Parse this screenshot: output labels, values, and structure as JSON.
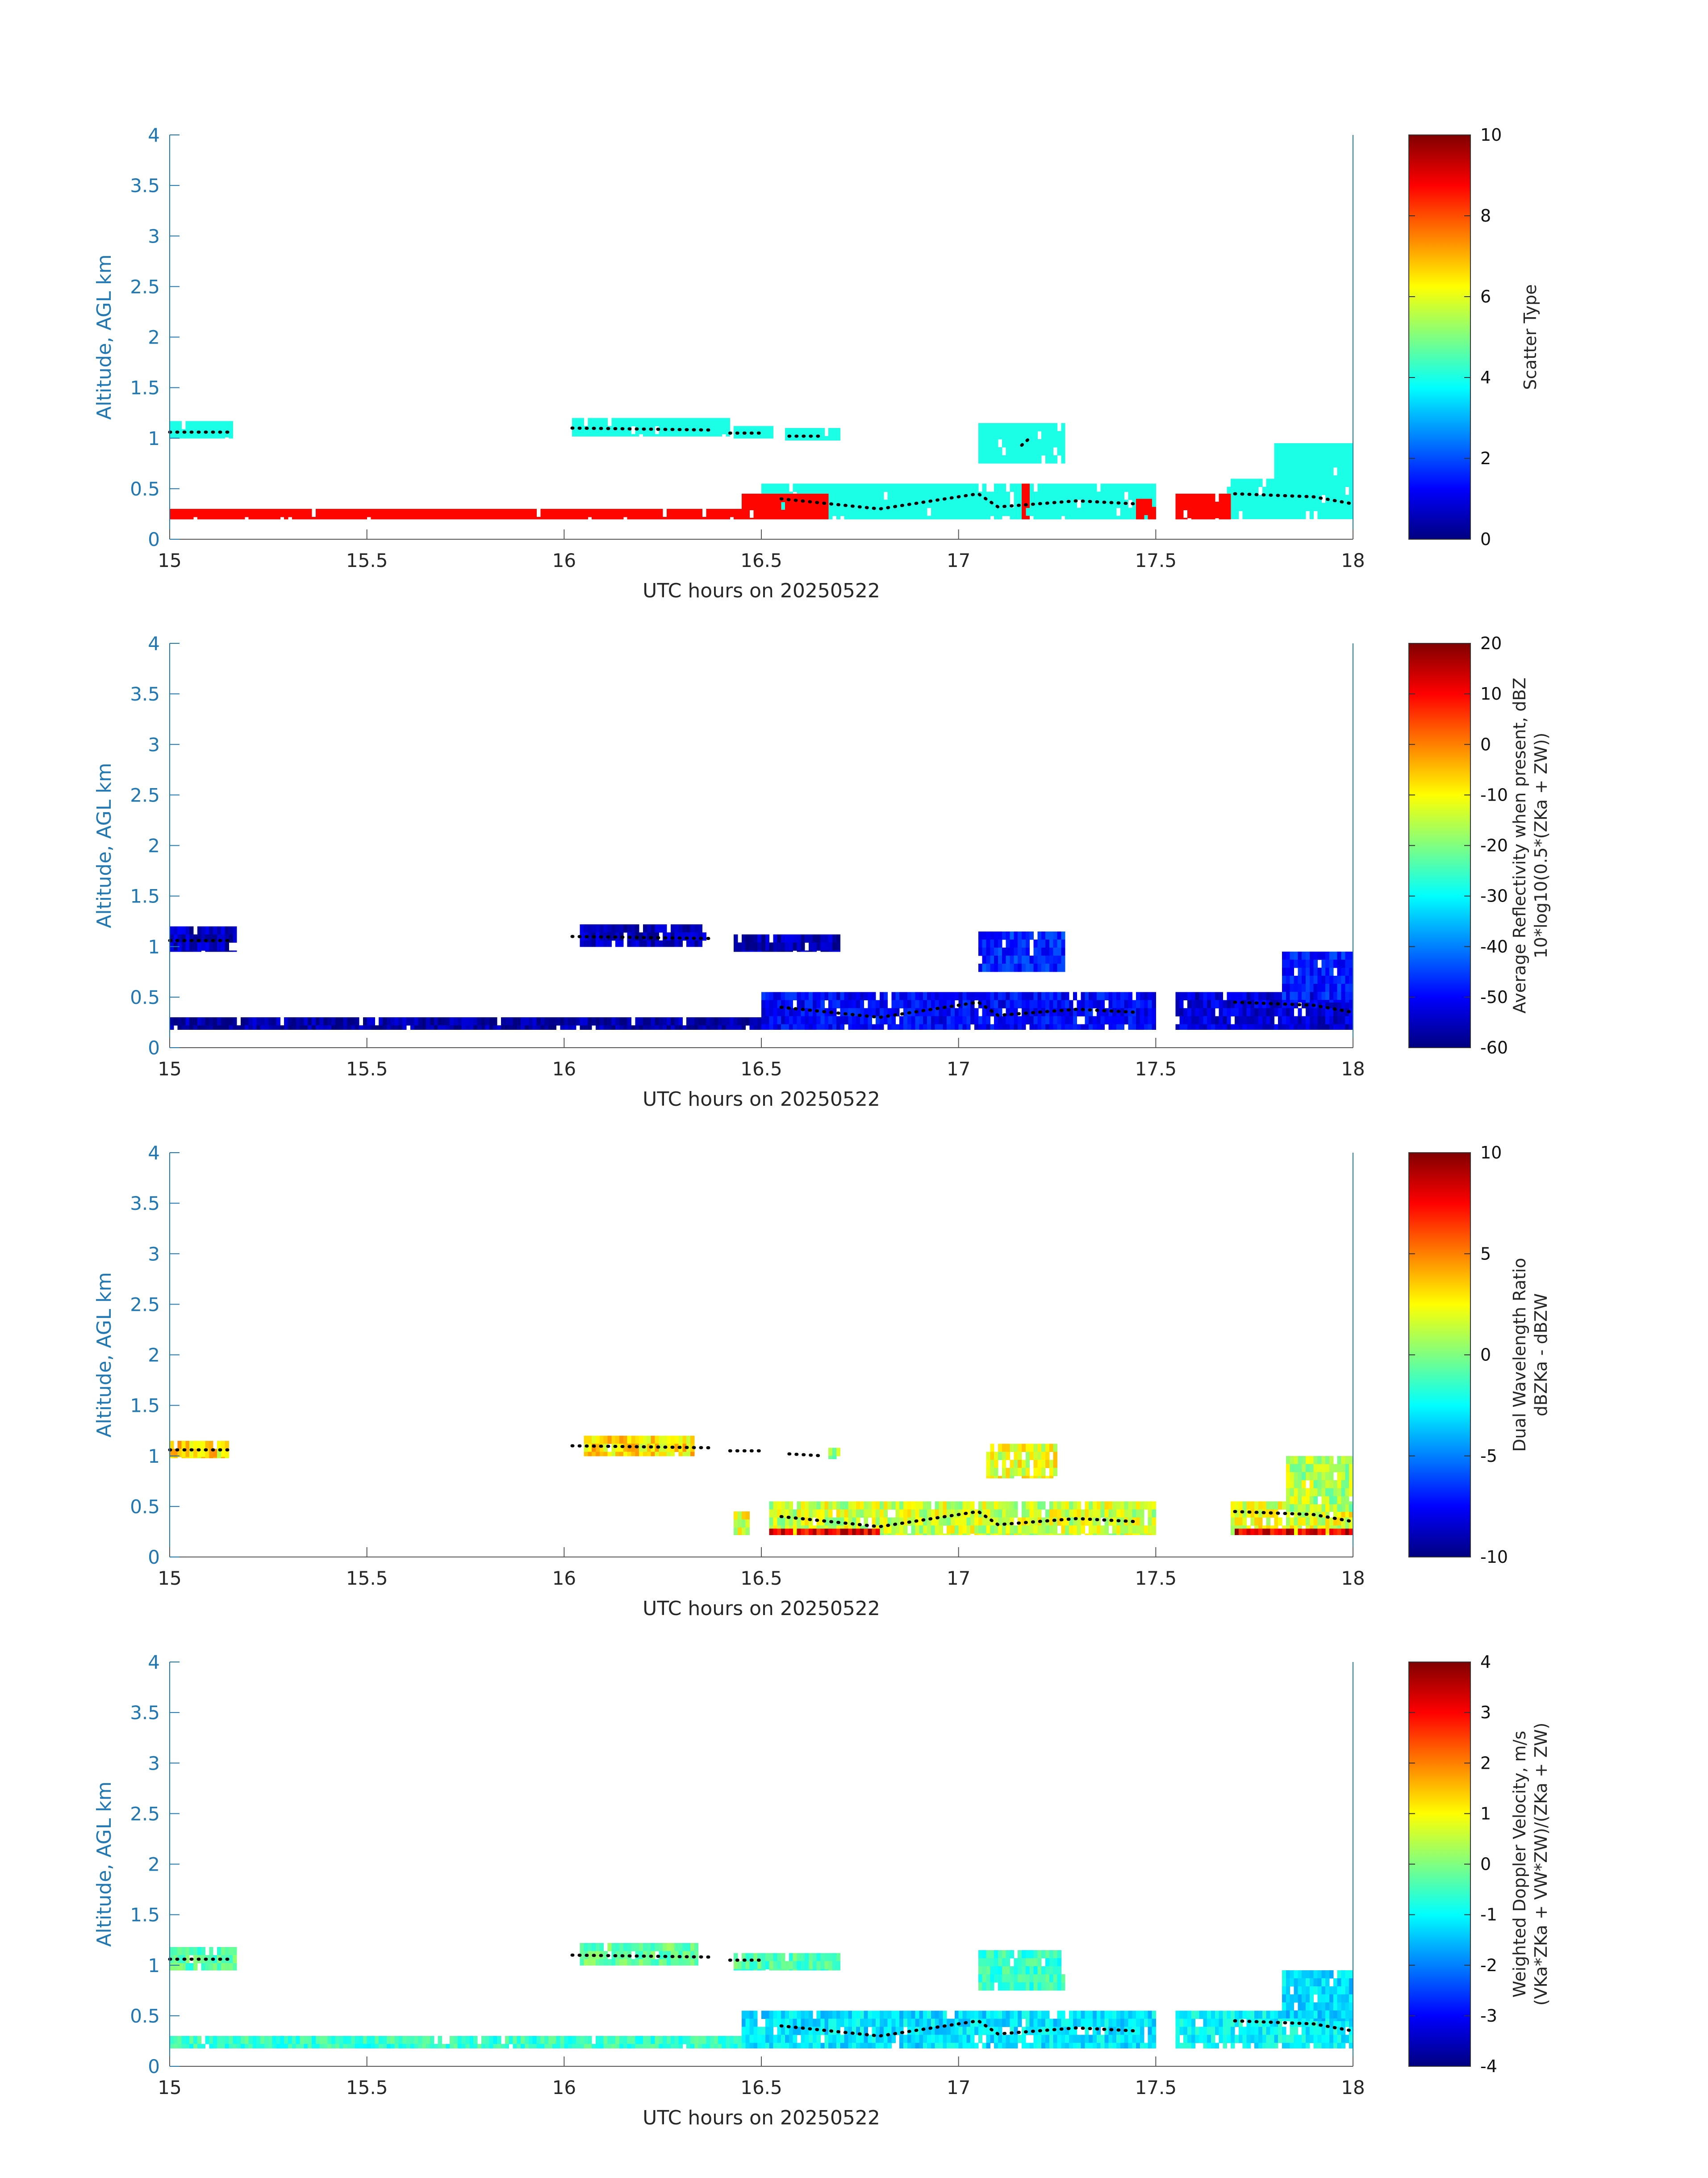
{
  "figure": {
    "xlabel": "UTC hours on 20250522",
    "ylabel": "Altitude, AGL km"
  },
  "chart_data": [
    {
      "type": "heatmap",
      "name": "Scatter Type",
      "xlabel": "UTC hours on 20250522",
      "ylabel": "Altitude, AGL km",
      "xlim": [
        15,
        18
      ],
      "ylim": [
        0,
        4
      ],
      "xticks": [
        "15",
        "15.5",
        "16",
        "16.5",
        "17",
        "17.5",
        "18"
      ],
      "yticks": [
        "0",
        "0.5",
        "1",
        "1.5",
        "2",
        "2.5",
        "3",
        "3.5",
        "4"
      ],
      "colorbar": {
        "label_lines": [
          "Scatter Type"
        ],
        "clim": [
          0,
          10
        ],
        "ticks": [
          "0",
          "2",
          "4",
          "6",
          "8",
          "10"
        ]
      },
      "regions": [
        {
          "x": [
            15.0,
            15.16
          ],
          "y": [
            1.0,
            1.17
          ],
          "value": 4
        },
        {
          "x": [
            16.02,
            16.42
          ],
          "y": [
            1.02,
            1.2
          ],
          "value": 4
        },
        {
          "x": [
            16.43,
            16.53
          ],
          "y": [
            1.0,
            1.12
          ],
          "value": 4
        },
        {
          "x": [
            16.56,
            16.7
          ],
          "y": [
            0.98,
            1.1
          ],
          "value": 4
        },
        {
          "x": [
            17.05,
            17.27
          ],
          "y": [
            0.75,
            1.15
          ],
          "value": 4
        },
        {
          "x": [
            16.5,
            17.5
          ],
          "y": [
            0.2,
            0.55
          ],
          "value": 4
        },
        {
          "x": [
            17.68,
            18.0
          ],
          "y": [
            0.2,
            0.6
          ],
          "value": 4
        },
        {
          "x": [
            17.8,
            18.0
          ],
          "y": [
            0.55,
            0.95
          ],
          "value": 4
        },
        {
          "x": [
            15.0,
            16.45
          ],
          "y": [
            0.2,
            0.3
          ],
          "value": 8.7
        },
        {
          "x": [
            16.45,
            16.67
          ],
          "y": [
            0.2,
            0.45
          ],
          "value": 8.7
        },
        {
          "x": [
            17.16,
            17.18
          ],
          "y": [
            0.2,
            0.55
          ],
          "value": 8.7
        },
        {
          "x": [
            17.45,
            17.5
          ],
          "y": [
            0.2,
            0.4
          ],
          "value": 8.7
        },
        {
          "x": [
            17.55,
            17.69
          ],
          "y": [
            0.2,
            0.45
          ],
          "value": 8.7
        }
      ],
      "dots": [
        {
          "x": [
            15.0,
            15.16
          ],
          "y": [
            1.06,
            1.06
          ]
        },
        {
          "x": [
            16.02,
            16.38
          ],
          "y": [
            1.1,
            1.08
          ]
        },
        {
          "x": [
            16.42,
            16.5
          ],
          "y": [
            1.05,
            1.05
          ]
        },
        {
          "x": [
            16.57,
            16.66
          ],
          "y": [
            1.02,
            1.02
          ]
        },
        {
          "x": [
            16.55,
            16.8,
            17.05,
            17.1,
            17.3,
            17.45
          ],
          "y": [
            0.4,
            0.3,
            0.45,
            0.32,
            0.38,
            0.35
          ]
        },
        {
          "x": [
            17.7,
            17.9,
            18.0
          ],
          "y": [
            0.45,
            0.42,
            0.35
          ]
        },
        {
          "x": [
            17.16,
            17.18
          ],
          "y": [
            0.93,
            1.0
          ]
        }
      ]
    },
    {
      "type": "heatmap",
      "name": "Average Reflectivity when present",
      "xlabel": "UTC hours on 20250522",
      "ylabel": "Altitude, AGL km",
      "xlim": [
        15,
        18
      ],
      "ylim": [
        0,
        4
      ],
      "xticks": [
        "15",
        "15.5",
        "16",
        "16.5",
        "17",
        "17.5",
        "18"
      ],
      "yticks": [
        "0",
        "0.5",
        "1",
        "1.5",
        "2",
        "2.5",
        "3",
        "3.5",
        "4"
      ],
      "colorbar": {
        "label_lines": [
          "Average Reflectivity when present, dBZ",
          "10*log10(0.5*(Z_Ka + Z_W))"
        ],
        "clim": [
          -60,
          20
        ],
        "ticks": [
          "-60",
          "-50",
          "-40",
          "-30",
          "-20",
          "-10",
          "0",
          "10",
          "20"
        ]
      },
      "regions": [
        {
          "x": [
            15.0,
            15.17
          ],
          "y": [
            0.95,
            1.2
          ],
          "value": -55
        },
        {
          "x": [
            16.04,
            16.36
          ],
          "y": [
            1.0,
            1.22
          ],
          "value": -55
        },
        {
          "x": [
            16.43,
            16.7
          ],
          "y": [
            0.95,
            1.12
          ],
          "value": -56
        },
        {
          "x": [
            17.05,
            17.27
          ],
          "y": [
            0.75,
            1.15
          ],
          "value": -47
        },
        {
          "x": [
            15.0,
            16.5
          ],
          "y": [
            0.18,
            0.3
          ],
          "value": -57
        },
        {
          "x": [
            16.5,
            17.5
          ],
          "y": [
            0.18,
            0.55
          ],
          "value": -50
        },
        {
          "x": [
            17.55,
            18.0
          ],
          "y": [
            0.18,
            0.55
          ],
          "value": -53
        },
        {
          "x": [
            17.82,
            18.0
          ],
          "y": [
            0.45,
            0.95
          ],
          "value": -48
        }
      ],
      "dots": [
        {
          "x": [
            15.0,
            15.16
          ],
          "y": [
            1.06,
            1.06
          ]
        },
        {
          "x": [
            16.02,
            16.38
          ],
          "y": [
            1.1,
            1.08
          ]
        },
        {
          "x": [
            16.55,
            16.8,
            17.05,
            17.1,
            17.3,
            17.45
          ],
          "y": [
            0.4,
            0.3,
            0.45,
            0.32,
            0.38,
            0.35
          ]
        },
        {
          "x": [
            17.7,
            17.9,
            18.0
          ],
          "y": [
            0.45,
            0.42,
            0.35
          ]
        }
      ]
    },
    {
      "type": "heatmap",
      "name": "Dual Wavelength Ratio",
      "xlabel": "UTC hours on 20250522",
      "ylabel": "Altitude, AGL km",
      "xlim": [
        15,
        18
      ],
      "ylim": [
        0,
        4
      ],
      "xticks": [
        "15",
        "15.5",
        "16",
        "16.5",
        "17",
        "17.5",
        "18"
      ],
      "yticks": [
        "0",
        "0.5",
        "1",
        "1.5",
        "2",
        "2.5",
        "3",
        "3.5",
        "4"
      ],
      "colorbar": {
        "label_lines": [
          "Dual Wavelength Ratio",
          "dBZ_Ka - dBZ_W"
        ],
        "clim": [
          -10,
          10
        ],
        "ticks": [
          "-10",
          "-5",
          "0",
          "5",
          "10"
        ]
      },
      "regions": [
        {
          "x": [
            15.0,
            15.15
          ],
          "y": [
            0.98,
            1.15
          ],
          "value": 3
        },
        {
          "x": [
            16.05,
            16.33
          ],
          "y": [
            1.0,
            1.2
          ],
          "value": 3
        },
        {
          "x": [
            16.67,
            16.7
          ],
          "y": [
            0.97,
            1.08
          ],
          "value": 0
        },
        {
          "x": [
            17.07,
            17.25
          ],
          "y": [
            0.78,
            1.12
          ],
          "value": 2
        },
        {
          "x": [
            16.43,
            16.47
          ],
          "y": [
            0.22,
            0.45
          ],
          "value": 2
        },
        {
          "x": [
            16.52,
            17.5
          ],
          "y": [
            0.22,
            0.55
          ],
          "value": 1.5
        },
        {
          "x": [
            17.69,
            18.0
          ],
          "y": [
            0.22,
            0.55
          ],
          "value": 2
        },
        {
          "x": [
            17.83,
            18.0
          ],
          "y": [
            0.45,
            1.0
          ],
          "value": 1
        },
        {
          "x": [
            16.52,
            16.8
          ],
          "y": [
            0.22,
            0.28
          ],
          "value": 8
        },
        {
          "x": [
            17.7,
            18.0
          ],
          "y": [
            0.22,
            0.28
          ],
          "value": 8
        }
      ],
      "dots": [
        {
          "x": [
            15.0,
            15.16
          ],
          "y": [
            1.06,
            1.06
          ]
        },
        {
          "x": [
            16.02,
            16.38
          ],
          "y": [
            1.1,
            1.08
          ]
        },
        {
          "x": [
            16.42,
            16.5
          ],
          "y": [
            1.05,
            1.05
          ]
        },
        {
          "x": [
            16.57,
            16.66
          ],
          "y": [
            1.02,
            1.0
          ]
        },
        {
          "x": [
            16.55,
            16.8,
            17.05,
            17.1,
            17.3,
            17.45
          ],
          "y": [
            0.4,
            0.3,
            0.45,
            0.32,
            0.38,
            0.35
          ]
        },
        {
          "x": [
            17.7,
            17.9,
            18.0
          ],
          "y": [
            0.45,
            0.42,
            0.35
          ]
        }
      ]
    },
    {
      "type": "heatmap",
      "name": "Weighted Doppler Velocity",
      "xlabel": "UTC hours on 20250522",
      "ylabel": "Altitude, AGL km",
      "xlim": [
        15,
        18
      ],
      "ylim": [
        0,
        4
      ],
      "xticks": [
        "15",
        "15.5",
        "16",
        "16.5",
        "17",
        "17.5",
        "18"
      ],
      "yticks": [
        "0",
        "0.5",
        "1",
        "1.5",
        "2",
        "2.5",
        "3",
        "3.5",
        "4"
      ],
      "colorbar": {
        "label_lines": [
          "Weighted Doppler Velocity, m/s",
          "(V_Ka*Z_Ka + V_W*Z_W)/(Z_Ka + Z_W)"
        ],
        "clim": [
          -4,
          4
        ],
        "ticks": [
          "-4",
          "-3",
          "-2",
          "-1",
          "0",
          "1",
          "2",
          "3",
          "4"
        ]
      },
      "regions": [
        {
          "x": [
            15.0,
            15.17
          ],
          "y": [
            0.95,
            1.18
          ],
          "value": -0.3
        },
        {
          "x": [
            16.04,
            16.34
          ],
          "y": [
            1.0,
            1.22
          ],
          "value": -0.2
        },
        {
          "x": [
            16.43,
            16.7
          ],
          "y": [
            0.95,
            1.12
          ],
          "value": -0.4
        },
        {
          "x": [
            17.05,
            17.27
          ],
          "y": [
            0.75,
            1.15
          ],
          "value": -0.6
        },
        {
          "x": [
            15.0,
            16.45
          ],
          "y": [
            0.18,
            0.3
          ],
          "value": -0.6
        },
        {
          "x": [
            16.45,
            17.5
          ],
          "y": [
            0.18,
            0.55
          ],
          "value": -1.2
        },
        {
          "x": [
            17.55,
            18.0
          ],
          "y": [
            0.18,
            0.55
          ],
          "value": -1.0
        },
        {
          "x": [
            17.82,
            18.0
          ],
          "y": [
            0.45,
            0.95
          ],
          "value": -1.3
        }
      ],
      "dots": [
        {
          "x": [
            15.0,
            15.16
          ],
          "y": [
            1.06,
            1.06
          ]
        },
        {
          "x": [
            16.02,
            16.38
          ],
          "y": [
            1.1,
            1.08
          ]
        },
        {
          "x": [
            16.42,
            16.5
          ],
          "y": [
            1.05,
            1.05
          ]
        },
        {
          "x": [
            16.55,
            16.8,
            17.05,
            17.1,
            17.3,
            17.45
          ],
          "y": [
            0.4,
            0.3,
            0.45,
            0.32,
            0.38,
            0.35
          ]
        },
        {
          "x": [
            17.7,
            17.9,
            18.0
          ],
          "y": [
            0.45,
            0.42,
            0.35
          ]
        }
      ]
    }
  ]
}
